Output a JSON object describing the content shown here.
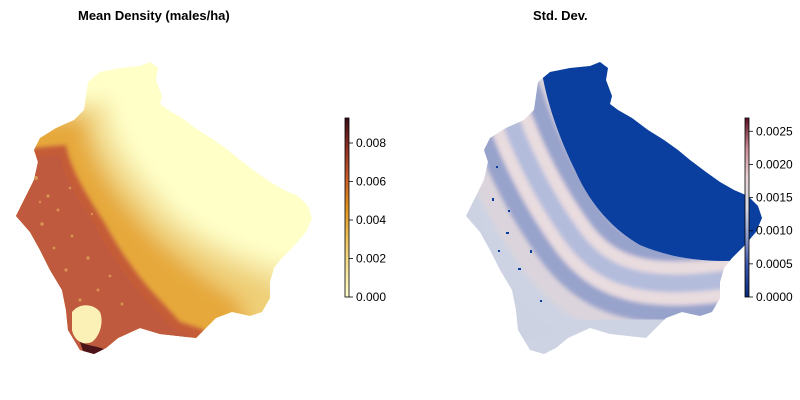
{
  "panels": [
    {
      "title": "Mean Density (males/ha)",
      "legend": {
        "ticks": [
          "0.000",
          "0.002",
          "0.004",
          "0.006",
          "0.008"
        ],
        "tick_values": [
          0.0,
          0.002,
          0.004,
          0.006,
          0.008
        ],
        "range": [
          0,
          0.0093
        ],
        "colors": [
          "#ffffcc",
          "#f5e49a",
          "#eec25c",
          "#e0931f",
          "#c65b2a",
          "#8f2f24",
          "#3d0d16"
        ]
      }
    },
    {
      "title": "Std. Dev.",
      "legend": {
        "ticks": [
          "0.0000",
          "0.0005",
          "0.0010",
          "0.0015",
          "0.0020",
          "0.0025"
        ],
        "tick_values": [
          0.0,
          0.0005,
          0.001,
          0.0015,
          0.002,
          0.0025
        ],
        "range": [
          0,
          0.0027
        ],
        "colors": [
          "#0b2a7a",
          "#3550a8",
          "#8c9bcc",
          "#d6d9e6",
          "#e9d4d6",
          "#c98b96",
          "#5a0f22"
        ]
      }
    }
  ]
}
